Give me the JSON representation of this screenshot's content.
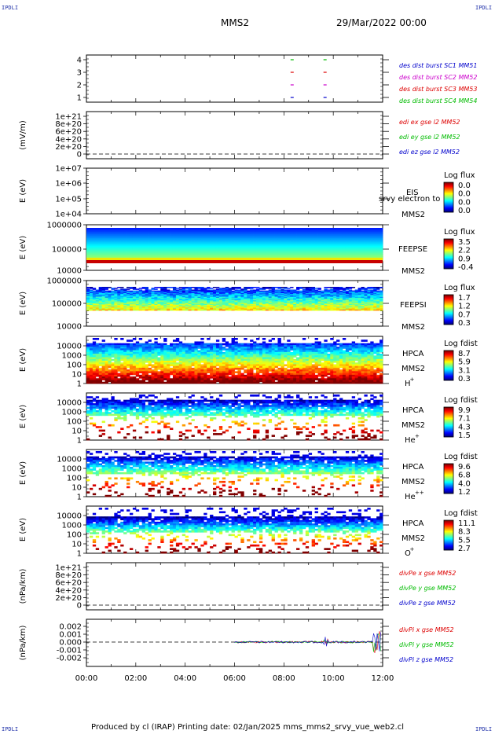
{
  "header": {
    "corner_tl": "IPDLI",
    "corner_tr": "IPDLI",
    "corner_bl": "IPDLI",
    "corner_br": "IPDLI",
    "spacecraft": "MMS2",
    "date": "29/Mar/2022 00:00"
  },
  "footer": {
    "text": "Produced by cl (IRAP)   Printing date: 02/Jan/2025   mms_mms2_srvy_vue_web2.cl"
  },
  "colors": {
    "mms1": "#0000cc",
    "mms2": "#cc00cc",
    "mms3": "#dd0000",
    "mms4": "#00bb00",
    "x": "#dd0000",
    "y": "#00bb00",
    "z": "#0000cc"
  },
  "chart_data": [
    {
      "id": "burst",
      "type": "scatter",
      "title": "",
      "ylabel": "",
      "ylim": [
        0.5,
        4.5
      ],
      "yticks": [
        "4",
        "3",
        "2",
        "1"
      ],
      "series": [
        {
          "name": "des dist burst SC1 MM51",
          "color": "#0000cc",
          "y": 1,
          "x": [
            "08:20",
            "09:40"
          ]
        },
        {
          "name": "des dist burst SC2 MM52",
          "color": "#cc00cc",
          "y": 2,
          "x": [
            "08:20",
            "09:40"
          ]
        },
        {
          "name": "des dist burst SC3 MM53",
          "color": "#dd0000",
          "y": 3,
          "x": [
            "08:20",
            "09:40"
          ]
        },
        {
          "name": "des dist burst SC4 MM54",
          "color": "#00bb00",
          "y": 4,
          "x": [
            "08:20",
            "09:40"
          ]
        }
      ]
    },
    {
      "id": "edi",
      "type": "line",
      "ylabel": "(mV/m)",
      "ylim": [
        0,
        1.1e+21
      ],
      "yticks": [
        "1e+21",
        "8e+20",
        "6e+20",
        "4e+20",
        "2e+20",
        "0"
      ],
      "series": [
        {
          "name": "edi ex gse l2 MM52",
          "color": "#dd0000"
        },
        {
          "name": "edi ey gse l2 MM52",
          "color": "#00bb00"
        },
        {
          "name": "edi ez gse l2 MM52",
          "color": "#0000cc"
        }
      ]
    },
    {
      "id": "eis",
      "type": "heatmap",
      "ylabel": "E (eV)",
      "yticks": [
        "1e+07",
        "1e+06",
        "1e+05",
        "1e+04"
      ],
      "labels": [
        "EIS",
        "MMS2"
      ],
      "overlay": "srvy electron to",
      "colorbar_title": "Log flux",
      "colorbar_ticks": [
        "0.0",
        "0.0",
        "0.0",
        "0.0"
      ]
    },
    {
      "id": "feepse",
      "type": "heatmap",
      "ylabel": "E (eV)",
      "yticks": [
        "1000000",
        "100000",
        "10000"
      ],
      "labels": [
        "FEEPSE",
        "MMS2"
      ],
      "colorbar_title": "Log flux",
      "colorbar_ticks": [
        "3.5",
        "2.2",
        "0.9",
        "-0.4"
      ]
    },
    {
      "id": "feepsi",
      "type": "heatmap",
      "ylabel": "E (eV)",
      "yticks": [
        "1000000",
        "100000",
        "10000"
      ],
      "labels": [
        "FEEPSI",
        "MMS2"
      ],
      "colorbar_title": "Log flux",
      "colorbar_ticks": [
        "1.7",
        "1.2",
        "0.7",
        "0.3"
      ]
    },
    {
      "id": "hpca_h",
      "type": "heatmap",
      "ylabel": "E (eV)",
      "yticks": [
        "10000",
        "1000",
        "100",
        "10",
        "1"
      ],
      "labels": [
        "HPCA",
        "MMS2",
        "H"
      ],
      "ion_sup": "+",
      "colorbar_title": "Log fdist",
      "colorbar_ticks": [
        "8.7",
        "5.9",
        "3.1",
        "0.3"
      ]
    },
    {
      "id": "hpca_he",
      "type": "heatmap",
      "ylabel": "E (eV)",
      "yticks": [
        "10000",
        "1000",
        "100",
        "10",
        "1"
      ],
      "labels": [
        "HPCA",
        "MMS2",
        "He"
      ],
      "ion_sup": "+",
      "colorbar_title": "Log fdist",
      "colorbar_ticks": [
        "9.9",
        "7.1",
        "4.3",
        "1.5"
      ]
    },
    {
      "id": "hpca_hepp",
      "type": "heatmap",
      "ylabel": "E (eV)",
      "yticks": [
        "10000",
        "1000",
        "100",
        "10",
        "1"
      ],
      "labels": [
        "HPCA",
        "MMS2",
        "He"
      ],
      "ion_sup": "++",
      "colorbar_title": "Log fdist",
      "colorbar_ticks": [
        "9.6",
        "6.8",
        "4.0",
        "1.2"
      ]
    },
    {
      "id": "hpca_o",
      "type": "heatmap",
      "ylabel": "E (eV)",
      "yticks": [
        "10000",
        "1000",
        "100",
        "10",
        "1"
      ],
      "labels": [
        "HPCA",
        "MMS2",
        "O"
      ],
      "ion_sup": "+",
      "colorbar_title": "Log fdist",
      "colorbar_ticks": [
        "11.1",
        "8.3",
        "5.5",
        "2.7"
      ]
    },
    {
      "id": "divpe",
      "type": "line",
      "ylabel": "(nPa/km)",
      "ylim": [
        0,
        1.1e+21
      ],
      "yticks": [
        "1e+21",
        "8e+20",
        "6e+20",
        "4e+20",
        "2e+20",
        "0"
      ],
      "series": [
        {
          "name": "divPe x gse MM52",
          "color": "#dd0000"
        },
        {
          "name": "divPe y gse MM52",
          "color": "#00bb00"
        },
        {
          "name": "divPe z gse MM52",
          "color": "#0000cc"
        }
      ]
    },
    {
      "id": "divpi",
      "type": "line",
      "ylabel": "(nPa/km)",
      "ylim": [
        -0.003,
        0.003
      ],
      "yticks": [
        "0.002",
        "0.001",
        "0.000",
        "-0.001",
        "-0.002"
      ],
      "series": [
        {
          "name": "divPi x gse MM52",
          "color": "#dd0000"
        },
        {
          "name": "divPi y gse MM52",
          "color": "#00bb00"
        },
        {
          "name": "divPi z gse MM52",
          "color": "#0000cc"
        }
      ]
    }
  ],
  "xaxis": {
    "ticks": [
      "00:00",
      "02:00",
      "04:00",
      "06:00",
      "08:00",
      "10:00",
      "12:00"
    ]
  }
}
